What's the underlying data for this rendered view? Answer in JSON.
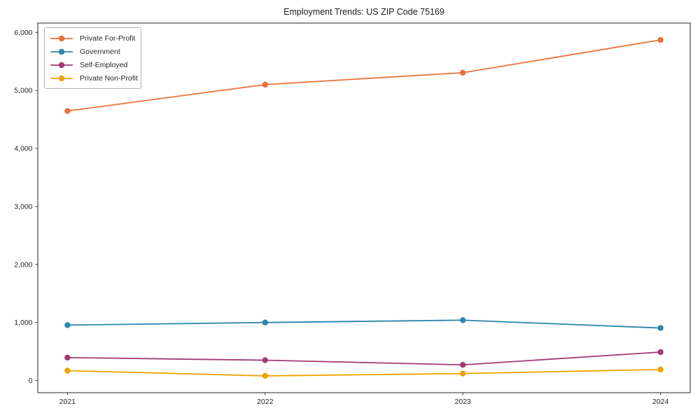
{
  "chart_data": {
    "type": "line",
    "title": "Employment Trends: US ZIP Code 75169",
    "xlabel": "",
    "ylabel": "",
    "x": [
      2021,
      2022,
      2023,
      2024
    ],
    "x_tick_labels": [
      "2021",
      "2022",
      "2023",
      "2024"
    ],
    "y_tick_values": [
      0,
      1000,
      2000,
      3000,
      4000,
      5000,
      6000
    ],
    "y_tick_labels": [
      "0",
      "1,000",
      "2,000",
      "3,000",
      "4,000",
      "5,000",
      "6,000"
    ],
    "xlim": [
      2020.85,
      2024.15
    ],
    "ylim": [
      -210,
      6160
    ],
    "grid": false,
    "legend_position": "upper-left",
    "axis_color": "#262626",
    "text_color": "#262626",
    "series": [
      {
        "name": "Private For-Profit",
        "color": "#E8743B",
        "values": [
          4645,
          5100,
          5305,
          5870
        ]
      },
      {
        "name": "Government",
        "color": "#2E86AB",
        "values": [
          955,
          1000,
          1040,
          905
        ]
      },
      {
        "name": "Self-Employed",
        "color": "#A23B72",
        "values": [
          395,
          350,
          270,
          490
        ]
      },
      {
        "name": "Private Non-Profit",
        "color": "#F0A202",
        "values": [
          170,
          80,
          120,
          190
        ]
      }
    ]
  }
}
